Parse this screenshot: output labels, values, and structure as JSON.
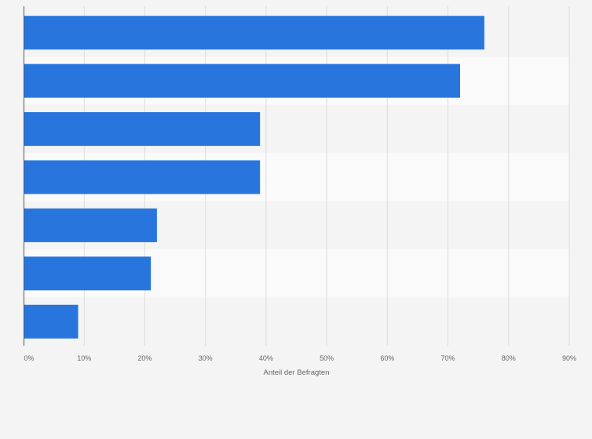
{
  "chart_data": {
    "type": "bar",
    "orientation": "horizontal",
    "categories": [
      "",
      "",
      "",
      "",
      "",
      "",
      ""
    ],
    "values": [
      76,
      72,
      39,
      39,
      22,
      21,
      9
    ],
    "xlim": [
      0,
      90
    ],
    "xticks": [
      "0%",
      "10%",
      "20%",
      "30%",
      "40%",
      "50%",
      "60%",
      "70%",
      "80%",
      "90%"
    ],
    "xlabel": "Anteil der Befragten",
    "grid": true,
    "bar_color": "#2876dd"
  }
}
